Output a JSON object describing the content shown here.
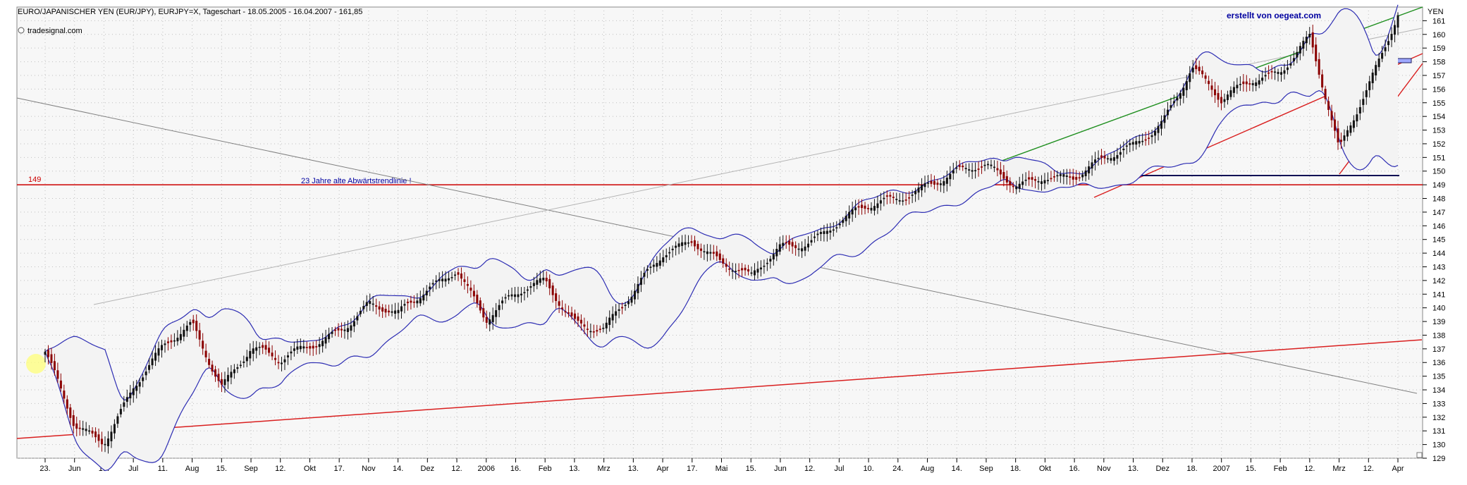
{
  "chart_data": {
    "type": "candlestick",
    "title": "EURO/JAPANISCHER YEN (EUR/JPY), EURJPY=X, Tageschart - 18.05.2005 - 16.04.2007 - 161,85",
    "source_label": "tradesignal.com",
    "watermark_label": "erstellt von oegeat.com",
    "y_axis_label": "YEN",
    "ylim": [
      129,
      162
    ],
    "y_ticks": [
      129,
      130,
      131,
      132,
      133,
      134,
      135,
      136,
      137,
      138,
      139,
      140,
      141,
      142,
      143,
      144,
      145,
      146,
      147,
      148,
      149,
      150,
      151,
      152,
      153,
      154,
      155,
      156,
      157,
      158,
      159,
      160,
      161
    ],
    "x_ticks": [
      "23.",
      "Jun",
      "13.",
      "Jul",
      "11.",
      "Aug",
      "15.",
      "Sep",
      "12.",
      "Okt",
      "17.",
      "Nov",
      "14.",
      "Dez",
      "12.",
      "2006",
      "16.",
      "Feb",
      "13.",
      "Mrz",
      "13.",
      "Apr",
      "17.",
      "Mai",
      "15.",
      "Jun",
      "12.",
      "Jul",
      "10.",
      "24.",
      "Aug",
      "14.",
      "Sep",
      "18.",
      "Okt",
      "16.",
      "Nov",
      "13.",
      "Dez",
      "18.",
      "2007",
      "15.",
      "Feb",
      "12.",
      "Mrz",
      "12.",
      "Apr"
    ],
    "horizontal_line_label": "149",
    "trendline_label": "23 Jahre alte Abwärtstrendlinie !",
    "price_anchors": [
      {
        "label": "23.",
        "close": 136.2
      },
      {
        "label": "Jun",
        "close": 131.2
      },
      {
        "label": "13.",
        "close": 130.6
      },
      {
        "label": "Jul",
        "close": 134.4
      },
      {
        "label": "11.",
        "close": 136.9
      },
      {
        "label": "Aug",
        "close": 138.8
      },
      {
        "label": "15.",
        "close": 134.6
      },
      {
        "label": "Sep",
        "close": 137.0
      },
      {
        "label": "12.",
        "close": 135.6
      },
      {
        "label": "Okt",
        "close": 137.1
      },
      {
        "label": "17.",
        "close": 138.8
      },
      {
        "label": "Nov",
        "close": 140.5
      },
      {
        "label": "14.",
        "close": 139.3
      },
      {
        "label": "Dez",
        "close": 141.3
      },
      {
        "label": "12.",
        "close": 143.1
      },
      {
        "label": "2006",
        "close": 139.0
      },
      {
        "label": "16.",
        "close": 140.5
      },
      {
        "label": "Feb",
        "close": 142.0
      },
      {
        "label": "13.",
        "close": 139.5
      },
      {
        "label": "Mrz",
        "close": 138.6
      },
      {
        "label": "13.",
        "close": 140.8
      },
      {
        "label": "Apr",
        "close": 143.9
      },
      {
        "label": "17.",
        "close": 145.2
      },
      {
        "label": "Mai",
        "close": 143.1
      },
      {
        "label": "15.",
        "close": 141.8
      },
      {
        "label": "Jun",
        "close": 144.6
      },
      {
        "label": "12.",
        "close": 145.4
      },
      {
        "label": "Jul",
        "close": 146.4
      },
      {
        "label": "10.",
        "close": 147.1
      },
      {
        "label": "24.",
        "close": 147.9
      },
      {
        "label": "Aug",
        "close": 149.2
      },
      {
        "label": "14.",
        "close": 149.8
      },
      {
        "label": "Sep",
        "close": 150.0
      },
      {
        "label": "18.",
        "close": 149.2
      },
      {
        "label": "Okt",
        "close": 150.2
      },
      {
        "label": "16.",
        "close": 149.5
      },
      {
        "label": "Nov",
        "close": 150.4
      },
      {
        "label": "13.",
        "close": 151.8
      },
      {
        "label": "Dez",
        "close": 153.8
      },
      {
        "label": "18.",
        "close": 157.4
      },
      {
        "label": "2007",
        "close": 154.9
      },
      {
        "label": "15.",
        "close": 157.0
      },
      {
        "label": "Feb",
        "close": 157.8
      },
      {
        "label": "12.",
        "close": 159.7
      },
      {
        "label": "Mrz",
        "close": 151.0
      },
      {
        "label": "12.",
        "close": 156.2
      },
      {
        "label": "Apr",
        "close": 161.8
      }
    ],
    "colors": {
      "background": "#f7f7f7",
      "grid": "#bfbfbf",
      "candle_up": "#111111",
      "candle_down": "#8b0000",
      "bollinger": "#2d2db3",
      "horizontal_line": "#cc0000",
      "trend_green": "#1f8f1f",
      "trend_red": "#d91f1f",
      "trend_gray": "#808080",
      "highlight_yellow": "#ffff7a",
      "highlight_blue": "#7b7bff"
    }
  }
}
